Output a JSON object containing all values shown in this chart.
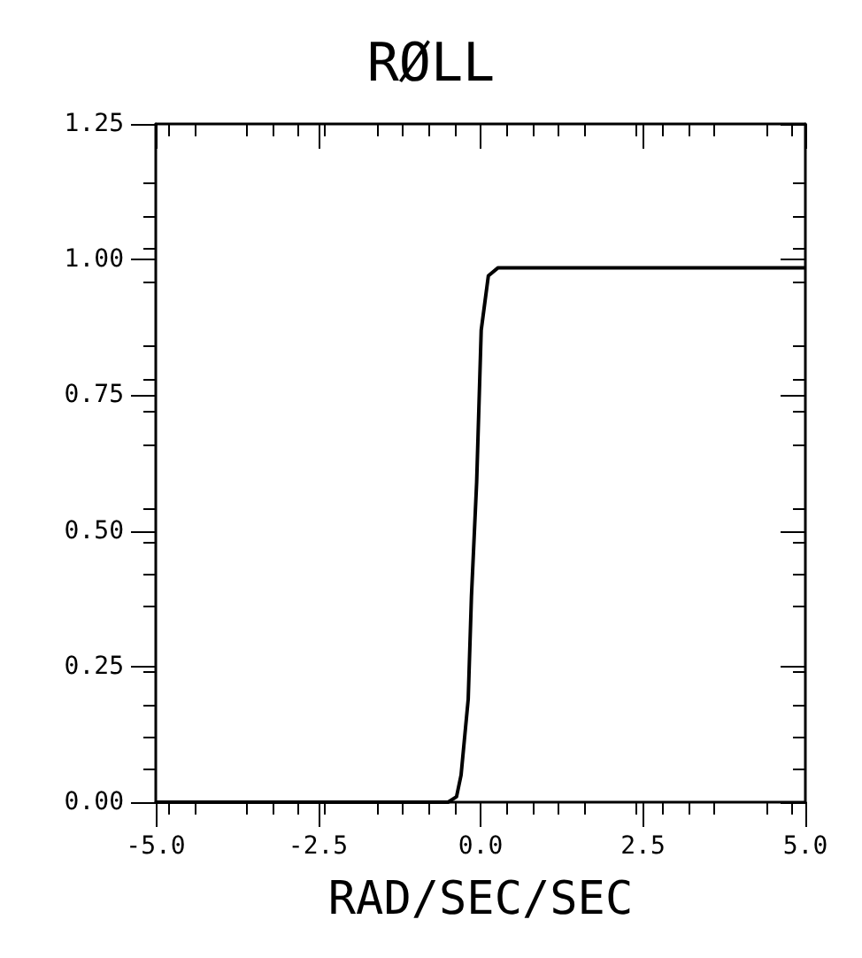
{
  "chart_data": {
    "type": "line",
    "title": "RØLL",
    "xlabel": "RAD/SEC/SEC",
    "x": [
      -5,
      -3,
      -1,
      -0.5,
      -0.37,
      -0.3,
      -0.19,
      -0.14,
      -0.06,
      0.01,
      0.12,
      0.27,
      1,
      2,
      3,
      4,
      5
    ],
    "series": [
      {
        "color": "#000000",
        "values": [
          0,
          0,
          0,
          0,
          0.01,
          0.05,
          0.19,
          0.38,
          0.59,
          0.87,
          0.97,
          0.985,
          0.985,
          0.985,
          0.985,
          0.985,
          0.985
        ]
      }
    ],
    "xlim": [
      -5,
      5
    ],
    "ylim": [
      0,
      1.25
    ],
    "xticks": [
      {
        "value": -5,
        "label": "-5.0"
      },
      {
        "value": -2.5,
        "label": "-2.5"
      },
      {
        "value": 0,
        "label": "0.0"
      },
      {
        "value": 2.5,
        "label": "2.5"
      },
      {
        "value": 5,
        "label": "5.0"
      }
    ],
    "yticks": [
      {
        "value": 0,
        "label": "0.00"
      },
      {
        "value": 0.25,
        "label": "0.25"
      },
      {
        "value": 0.5,
        "label": "0.50"
      },
      {
        "value": 0.75,
        "label": "0.75"
      },
      {
        "value": 1,
        "label": "1.00"
      },
      {
        "value": 1.25,
        "label": "1.25"
      }
    ],
    "grid": false,
    "marker": "none",
    "line_style": "solid"
  }
}
